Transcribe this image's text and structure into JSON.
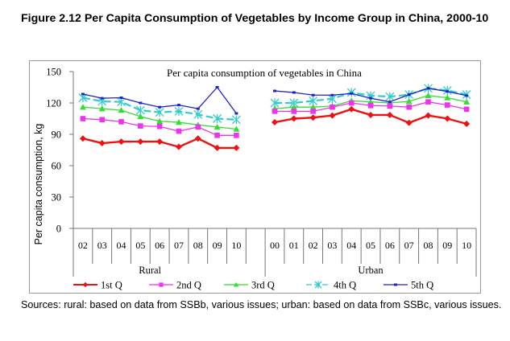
{
  "figure": {
    "title": "Figure 2.12 Per Capita Consumption of Vegetables by Income Group in China, 2000-10",
    "sources": "Sources: rural: based on data from SSBb, various issues; urban: based on data from SSBc, various issues."
  },
  "chart_data": {
    "type": "line",
    "title": "Per capita consumption of vegetables in China",
    "xlabel": "",
    "ylabel": "Per capita consumption, kg",
    "ylim": [
      0,
      150
    ],
    "yticks": [
      0,
      30,
      60,
      90,
      120,
      150
    ],
    "grid": false,
    "legend_position": "bottom",
    "groups": [
      {
        "name": "Rural",
        "categories": [
          "02",
          "03",
          "04",
          "05",
          "06",
          "07",
          "08",
          "09",
          "10"
        ],
        "series": [
          {
            "name": "1st Q",
            "values": [
              86,
              81.5,
              83,
              83,
              83,
              78,
              86,
              77,
              77
            ]
          },
          {
            "name": "2nd Q",
            "values": [
              105,
              104,
              102,
              98,
              97.5,
              93,
              97,
              89,
              89
            ]
          },
          {
            "name": "3rd Q",
            "values": [
              116,
              114.5,
              113,
              107,
              102.5,
              101.5,
              99,
              97,
              95
            ]
          },
          {
            "name": "4th Q",
            "values": [
              125,
              121.5,
              121,
              113,
              111,
              112,
              109,
              105,
              104
            ]
          },
          {
            "name": "5th Q",
            "values": [
              128.5,
              124.5,
              125,
              120,
              116,
              118,
              114.5,
              135,
              110
            ]
          }
        ]
      },
      {
        "name": "Urban",
        "categories": [
          "00",
          "01",
          "02",
          "03",
          "04",
          "05",
          "06",
          "07",
          "08",
          "09",
          "10"
        ],
        "series": [
          {
            "name": "1st Q",
            "values": [
              101.5,
              105,
              106,
              108,
              114,
              108.5,
              108.5,
              101,
              108,
              105,
              100
            ]
          },
          {
            "name": "2nd Q",
            "values": [
              112,
              112,
              112,
              116,
              120,
              117.5,
              117,
              116,
              121,
              118,
              114
            ]
          },
          {
            "name": "3rd Q",
            "values": [
              114.5,
              116,
              116,
              117,
              122,
              121,
              120,
              121.5,
              127,
              125,
              121
            ]
          },
          {
            "name": "4th Q",
            "values": [
              120,
              120,
              122,
              124,
              130,
              127,
              126,
              128,
              134,
              132,
              128
            ]
          },
          {
            "name": "5th Q",
            "values": [
              131.5,
              130,
              127.5,
              127.5,
              129,
              124.5,
              121,
              128,
              134,
              131,
              127
            ]
          }
        ]
      }
    ],
    "legend": [
      {
        "name": "1st Q",
        "color": "#ee1111",
        "marker": "diamond",
        "dash": "solid"
      },
      {
        "name": "2nd Q",
        "color": "#ee33ee",
        "marker": "square",
        "dash": "solid"
      },
      {
        "name": "3rd Q",
        "color": "#33dd33",
        "marker": "triangle",
        "dash": "solid"
      },
      {
        "name": "4th Q",
        "color": "#33cccc",
        "marker": "asterisk",
        "dash": "dashed"
      },
      {
        "name": "5th Q",
        "color": "#2222cc",
        "marker": "dot",
        "dash": "solid"
      }
    ]
  }
}
